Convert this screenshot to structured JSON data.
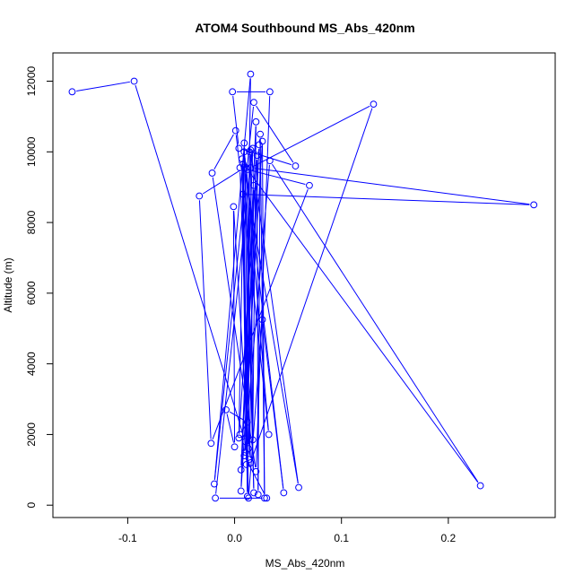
{
  "chart_data": {
    "type": "line",
    "title": "ATOM4 Southbound MS_Abs_420nm",
    "xlabel": "MS_Abs_420nm",
    "ylabel": "Altitude (m)",
    "xlim": [
      -0.17,
      0.3
    ],
    "ylim": [
      -350,
      12800
    ],
    "xticks": [
      -0.1,
      0.0,
      0.1,
      0.2
    ],
    "xtick_labels": [
      "-0.1",
      "0.0",
      "0.1",
      "0.2"
    ],
    "yticks": [
      0,
      2000,
      4000,
      6000,
      8000,
      10000,
      12000
    ],
    "ytick_labels": [
      "0",
      "2000",
      "4000",
      "6000",
      "8000",
      "10000",
      "12000"
    ],
    "grid": false,
    "color": "#0000ff",
    "series": [
      {
        "marker": "open-circle",
        "points": [
          {
            "x": -0.152,
            "y": 11700
          },
          {
            "x": -0.094,
            "y": 12000
          },
          {
            "x": 0.01,
            "y": 1800
          },
          {
            "x": 0.015,
            "y": 12200
          },
          {
            "x": -0.019,
            "y": 600
          },
          {
            "x": 0.018,
            "y": 11400
          },
          {
            "x": 0.057,
            "y": 9600
          },
          {
            "x": 0.004,
            "y": 10100
          },
          {
            "x": -0.002,
            "y": 11700
          },
          {
            "x": 0.033,
            "y": 11700
          },
          {
            "x": 0.02,
            "y": 950
          },
          {
            "x": -0.021,
            "y": 9400
          },
          {
            "x": 0.001,
            "y": 10600
          },
          {
            "x": 0.005,
            "y": 9550
          },
          {
            "x": 0.015,
            "y": 1200
          },
          {
            "x": 0.13,
            "y": 11350
          },
          {
            "x": 0.015,
            "y": 9550
          },
          {
            "x": 0.28,
            "y": 8500
          },
          {
            "x": 0.008,
            "y": 8800
          },
          {
            "x": 0.032,
            "y": 2000
          },
          {
            "x": 0.011,
            "y": 9550
          },
          {
            "x": 0.018,
            "y": 350
          },
          {
            "x": 0.009,
            "y": 10250
          },
          {
            "x": 0.004,
            "y": 1900
          },
          {
            "x": 0.021,
            "y": 9900
          },
          {
            "x": 0.022,
            "y": 300
          },
          {
            "x": 0.024,
            "y": 10500
          },
          {
            "x": 0.028,
            "y": 200
          },
          {
            "x": 0.026,
            "y": 10300
          },
          {
            "x": 0.006,
            "y": 400
          },
          {
            "x": 0.017,
            "y": 10100
          },
          {
            "x": -0.018,
            "y": 200
          },
          {
            "x": 0.03,
            "y": 200
          },
          {
            "x": 0.009,
            "y": 1400
          },
          {
            "x": 0.033,
            "y": 9750
          },
          {
            "x": 0.23,
            "y": 550
          },
          {
            "x": 0.012,
            "y": 9500
          },
          {
            "x": 0.07,
            "y": 9050
          },
          {
            "x": -0.022,
            "y": 1750
          },
          {
            "x": -0.033,
            "y": 8750
          },
          {
            "x": 0.009,
            "y": 9550
          },
          {
            "x": 0.06,
            "y": 500
          },
          {
            "x": 0.015,
            "y": 10050
          },
          {
            "x": 0.017,
            "y": 1850
          },
          {
            "x": 0.02,
            "y": 10850
          },
          {
            "x": 0.006,
            "y": 1000
          },
          {
            "x": 0.023,
            "y": 10200
          },
          {
            "x": 0.01,
            "y": 1500
          },
          {
            "x": 0.018,
            "y": 9050
          },
          {
            "x": 0.014,
            "y": 1300
          },
          {
            "x": 0.009,
            "y": 10000
          },
          {
            "x": 0.046,
            "y": 350
          },
          {
            "x": 0.026,
            "y": 5250
          },
          {
            "x": 0.013,
            "y": 200
          },
          {
            "x": 0.008,
            "y": 9650
          },
          {
            "x": 0.012,
            "y": 250
          },
          {
            "x": 0.007,
            "y": 9800
          },
          {
            "x": 0.011,
            "y": 1150
          },
          {
            "x": 0.014,
            "y": 10000
          },
          {
            "x": 0.013,
            "y": 1600
          },
          {
            "x": -0.001,
            "y": 8450
          },
          {
            "x": 0.0,
            "y": 1650
          },
          {
            "x": -0.008,
            "y": 2700
          },
          {
            "x": 0.012,
            "y": 2350
          },
          {
            "x": 0.005,
            "y": 2000
          }
        ]
      }
    ]
  }
}
